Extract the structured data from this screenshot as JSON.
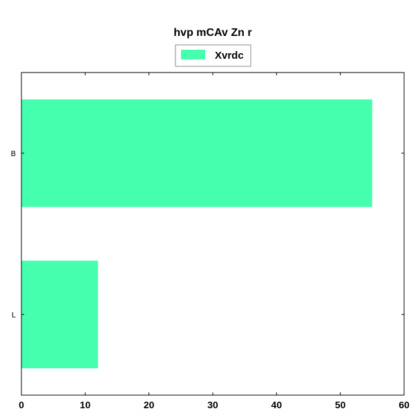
{
  "chart_data": {
    "type": "bar",
    "orientation": "horizontal",
    "title": "hvp mCAv Zn  r",
    "xlabel": "",
    "ylabel": "",
    "categories": [
      "B",
      "L"
    ],
    "series": [
      {
        "name": "Xvrdc",
        "values": [
          55,
          12
        ],
        "color": "#45ffaf"
      }
    ],
    "xlim": [
      0,
      60
    ],
    "xticks": [
      0,
      10,
      20,
      30,
      40,
      50,
      60
    ],
    "xtick_labels": [
      "0",
      "10",
      "20",
      "30",
      "40",
      "50",
      "60"
    ],
    "grid": false,
    "legend_position": "top-center"
  }
}
